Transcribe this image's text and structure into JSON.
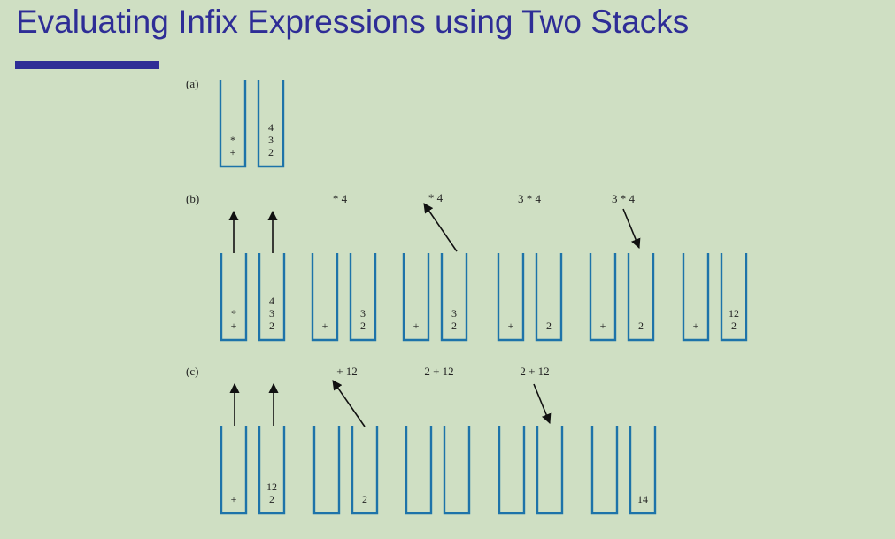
{
  "slide": {
    "title": "Evaluating Infix Expressions using Two Stacks"
  },
  "colors": {
    "background": "#cfdfc3",
    "title": "#2e2d96",
    "stack_outline": "#1d73a9",
    "text": "#222222"
  },
  "panels": [
    {
      "label": "(a)",
      "expressions": [],
      "snapshots": [
        {
          "operators": [
            "+",
            "*"
          ],
          "values": [
            "2",
            "3",
            "4"
          ]
        }
      ]
    },
    {
      "label": "(b)",
      "expressions": [
        "* 4",
        "* 4",
        "3 * 4",
        "3 * 4"
      ],
      "snapshots": [
        {
          "operators": [
            "+",
            "*"
          ],
          "values": [
            "2",
            "3",
            "4"
          ]
        },
        {
          "operators": [
            "+"
          ],
          "values": [
            "2",
            "3"
          ]
        },
        {
          "operators": [
            "+"
          ],
          "values": [
            "2",
            "3"
          ]
        },
        {
          "operators": [
            "+"
          ],
          "values": [
            "2"
          ]
        },
        {
          "operators": [
            "+"
          ],
          "values": [
            "2"
          ]
        },
        {
          "operators": [
            "+"
          ],
          "values": [
            "2",
            "12"
          ]
        }
      ]
    },
    {
      "label": "(c)",
      "expressions": [
        "+ 12",
        "2 + 12",
        "2 + 12"
      ],
      "snapshots": [
        {
          "operators": [
            "+"
          ],
          "values": [
            "2",
            "12"
          ]
        },
        {
          "operators": [],
          "values": [
            "2"
          ]
        },
        {
          "operators": [],
          "values": []
        },
        {
          "operators": [],
          "values": []
        },
        {
          "operators": [],
          "values": [
            "14"
          ]
        }
      ]
    }
  ]
}
